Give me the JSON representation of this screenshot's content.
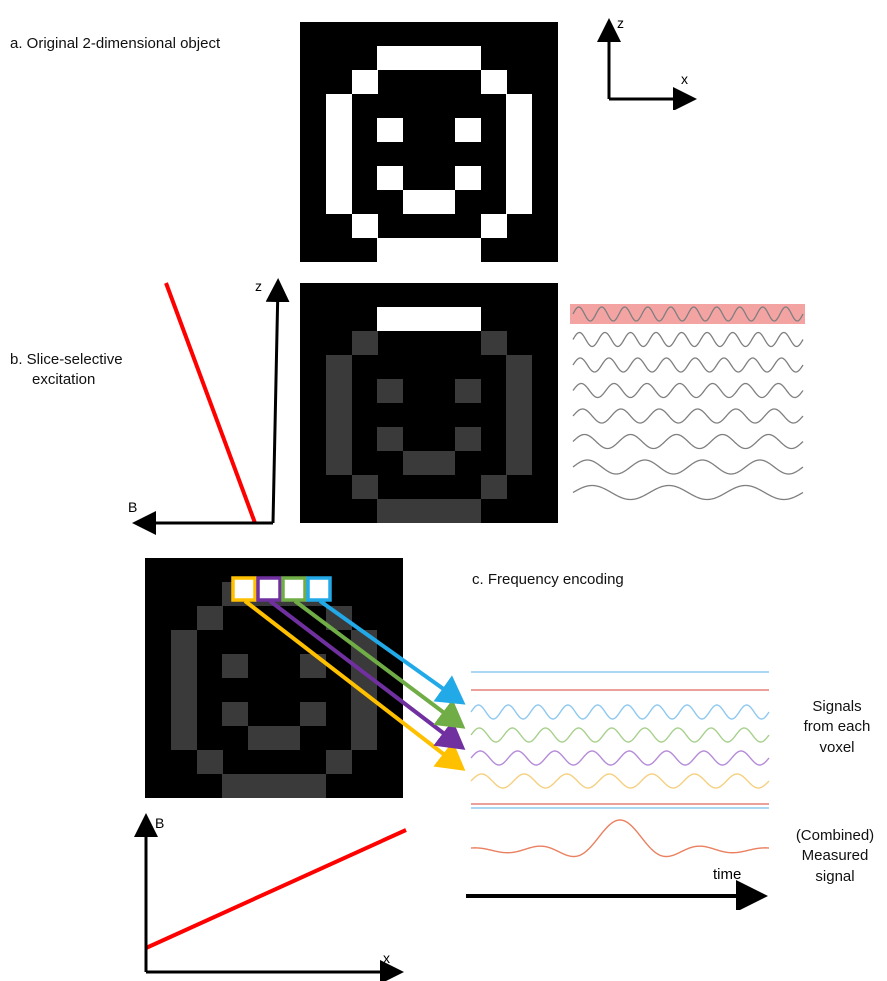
{
  "labels": {
    "a_title": "a. Original 2-dimensional object",
    "b_title_line1": "b. Slice-selective",
    "b_title_line2": "excitation",
    "c_title": "c. Frequency encoding",
    "signals_line1": "Signals",
    "signals_line2": "from each",
    "signals_line3": "voxel",
    "combined_line1": "(Combined)",
    "combined_line2": "Measured",
    "combined_line3": "signal",
    "time": "time"
  },
  "axes": {
    "a_vertical": "z",
    "a_horizontal": "x",
    "b_vertical": "z",
    "b_horizontal": "B",
    "c_vertical": "B",
    "c_horizontal": "x"
  },
  "colors": {
    "background": "#ffffff",
    "object_bright": "#ffffff",
    "object_dim": "#3a3a3a",
    "gradient_line": "#ff0000",
    "selected_slice_band": "#f4a3a3",
    "rf_wave": "#7f7f7f",
    "voxel_yellow": "#ffc000",
    "voxel_purple": "#7030a0",
    "voxel_green": "#70ad47",
    "voxel_blue": "#22a9e8",
    "signal_red": "#e6807a",
    "signal_blue": "#8ec8f0",
    "signal_green": "#a8d08d",
    "signal_purple": "#b58bd8",
    "signal_yellow": "#f5d080",
    "measured_signal": "#ea8060"
  },
  "object_pattern": [
    "0000000000",
    "0001111000",
    "0010000100",
    "0100000010",
    "0101001010",
    "0100000010",
    "0101001010",
    "0100110010",
    "0010000100",
    "0001111000"
  ]
}
